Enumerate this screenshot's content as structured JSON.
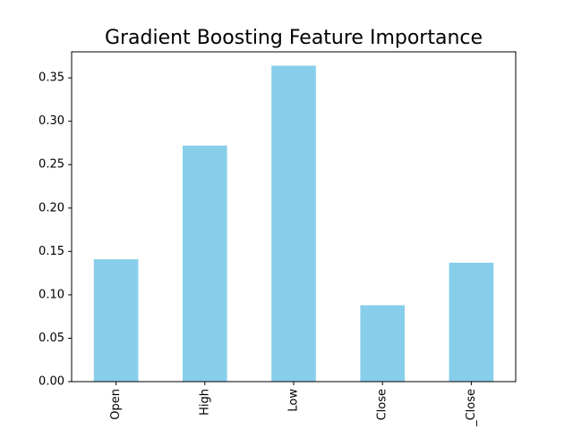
{
  "chart_data": {
    "type": "bar",
    "title": "Gradient Boosting Feature Importance",
    "xlabel": "",
    "ylabel": "",
    "categories": [
      "Open",
      "High",
      "Low",
      "Close",
      "_Close"
    ],
    "values": [
      0.141,
      0.272,
      0.364,
      0.088,
      0.137
    ],
    "ylim": [
      0,
      0.38
    ],
    "yticks": [
      0.0,
      0.05,
      0.1,
      0.15,
      0.2,
      0.25,
      0.3,
      0.35
    ],
    "ytick_labels": [
      "0.00",
      "0.05",
      "0.10",
      "0.15",
      "0.20",
      "0.25",
      "0.30",
      "0.35"
    ],
    "bar_color": "#87CEEB",
    "grid": false,
    "legend": "none"
  }
}
